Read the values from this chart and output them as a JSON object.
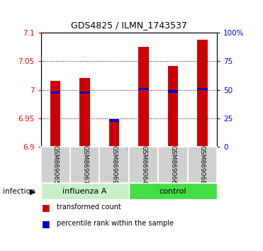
{
  "title": "GDS4825 / ILMN_1743537",
  "samples": [
    "GSM869065",
    "GSM869067",
    "GSM869069",
    "GSM869064",
    "GSM869066",
    "GSM869068"
  ],
  "group_colors": [
    "#c8f0c8",
    "#44dd44"
  ],
  "bar_bottom": 6.9,
  "transformed_counts": [
    7.015,
    7.02,
    6.943,
    7.075,
    7.042,
    7.088
  ],
  "percentile_ranks": [
    0.475,
    0.475,
    0.23,
    0.505,
    0.485,
    0.505
  ],
  "ylim_left": [
    6.9,
    7.1
  ],
  "ylim_right": [
    0,
    100
  ],
  "yticks_left": [
    6.9,
    6.95,
    7.0,
    7.05,
    7.1
  ],
  "yticks_right": [
    0,
    25,
    50,
    75,
    100
  ],
  "ytick_labels_left": [
    "6.9",
    "6.95",
    "7",
    "7.05",
    "7.1"
  ],
  "ytick_labels_right": [
    "0",
    "25",
    "50",
    "75",
    "100%"
  ],
  "bar_color": "#cc0000",
  "percentile_color": "#0000cc",
  "bar_width": 0.35,
  "legend_red": "transformed count",
  "legend_blue": "percentile rank within the sample"
}
